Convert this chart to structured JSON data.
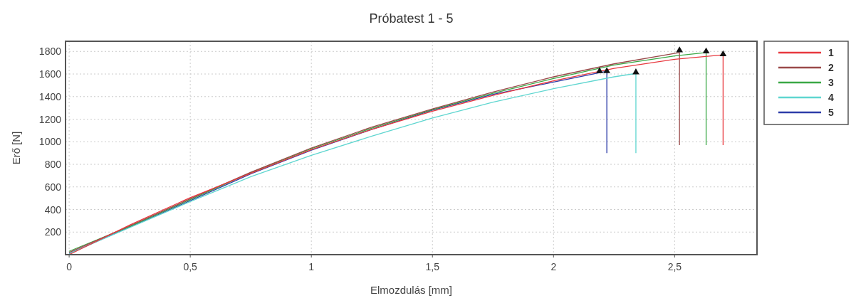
{
  "chart_data": {
    "type": "line",
    "title": "Próbatest 1 - 5",
    "xlabel": "Elmozdulás [mm]",
    "ylabel": "Erő [N]",
    "xlim": [
      -0.015,
      2.84
    ],
    "ylim": [
      0,
      1890
    ],
    "xticks": [
      0,
      {
        "value": 0.5,
        "label": "0,5"
      },
      1,
      {
        "value": 1.5,
        "label": "1,5"
      },
      2,
      {
        "value": 2.5,
        "label": "2,5"
      }
    ],
    "yticks": [
      200,
      400,
      600,
      800,
      1000,
      1200,
      1400,
      1600,
      1800
    ],
    "grid": true,
    "legend": "right",
    "line_style": "solid",
    "marker": "none",
    "series": [
      {
        "name": "1",
        "color": "#e8393f",
        "x": [
          0,
          0.25,
          0.5,
          0.75,
          1,
          1.25,
          1.5,
          1.75,
          2,
          2.25,
          2.5,
          2.7,
          2.7
        ],
        "values": [
          0,
          262,
          505,
          720,
          930,
          1110,
          1270,
          1410,
          1540,
          1650,
          1730,
          1770,
          970
        ]
      },
      {
        "name": "2",
        "color": "#9a4a4a",
        "x": [
          0,
          0.25,
          0.5,
          0.75,
          1,
          1.25,
          1.5,
          1.75,
          2,
          2.25,
          2.52,
          2.52
        ],
        "values": [
          20,
          255,
          495,
          730,
          945,
          1130,
          1290,
          1440,
          1575,
          1690,
          1790,
          970
        ]
      },
      {
        "name": "3",
        "color": "#3aa845",
        "x": [
          0,
          0.25,
          0.5,
          0.75,
          1,
          1.25,
          1.5,
          1.75,
          2,
          2.25,
          2.5,
          2.63,
          2.63
        ],
        "values": [
          30,
          250,
          488,
          725,
          940,
          1120,
          1285,
          1430,
          1560,
          1680,
          1760,
          1790,
          970
        ]
      },
      {
        "name": "4",
        "color": "#5fd6d0",
        "x": [
          0,
          0.25,
          0.5,
          0.75,
          1,
          1.25,
          1.5,
          1.75,
          2,
          2.25,
          2.34,
          2.34
        ],
        "values": [
          10,
          240,
          470,
          690,
          880,
          1050,
          1210,
          1350,
          1470,
          1575,
          1605,
          900
        ]
      },
      {
        "name": "5",
        "color": "#2e3ca8",
        "x": [
          0,
          0.25,
          0.5,
          0.75,
          1,
          1.25,
          1.5,
          1.75,
          2,
          2.22,
          2.22
        ],
        "values": [
          10,
          244,
          478,
          715,
          925,
          1110,
          1280,
          1420,
          1528,
          1625,
          900
        ]
      },
      {
        "type": "scatter",
        "marker": "triangle",
        "color": "#111111",
        "x": [
          2.19,
          2.22,
          2.34,
          2.52,
          2.63,
          2.7
        ],
        "values": [
          1625,
          1625,
          1615,
          1810,
          1800,
          1775
        ]
      }
    ]
  }
}
